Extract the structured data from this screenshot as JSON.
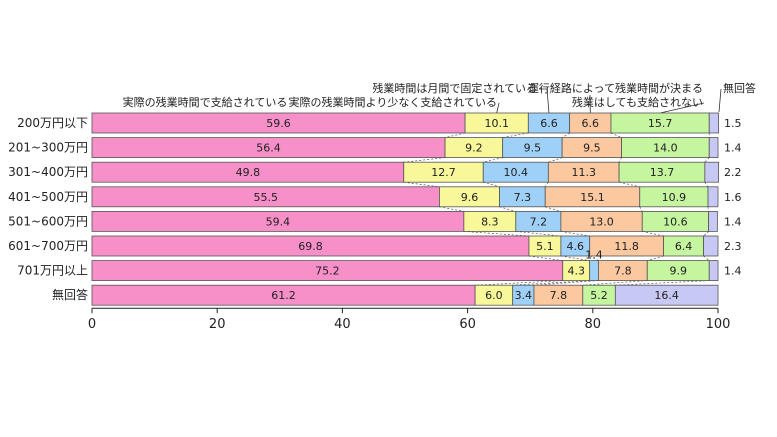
{
  "chart_data": {
    "type": "bar",
    "orientation": "horizontal",
    "stacked": true,
    "categories": [
      "200万円以下",
      "201~300万円",
      "301~400万円",
      "401~500万円",
      "501~600万円",
      "601~700万円",
      "701万円以上",
      "無回答"
    ],
    "series": [
      {
        "name": "実際の残業時間で支給されている",
        "color": "#f78fc8",
        "values": [
          59.6,
          56.4,
          49.8,
          55.5,
          59.4,
          69.8,
          75.2,
          61.2
        ]
      },
      {
        "name": "実際の残業時間より少なく支給されている",
        "color": "#f8f89a",
        "values": [
          10.1,
          9.2,
          12.7,
          9.6,
          8.3,
          5.1,
          4.3,
          6.0
        ]
      },
      {
        "name": "残業時間は月間で固定されている",
        "color": "#9fd0f7",
        "values": [
          6.6,
          9.5,
          10.4,
          7.3,
          7.2,
          4.6,
          1.4,
          3.4
        ]
      },
      {
        "name": "運行経路によって残業時間が決まる",
        "color": "#fbc8a0",
        "values": [
          6.6,
          9.5,
          11.3,
          15.1,
          13.0,
          11.8,
          7.8,
          7.8
        ]
      },
      {
        "name": "残業はしても支給されない",
        "color": "#c6f5a0",
        "values": [
          15.7,
          14.0,
          13.7,
          10.9,
          10.6,
          6.4,
          9.9,
          5.2
        ]
      },
      {
        "name": "無回答",
        "color": "#c8c8f5",
        "values": [
          1.5,
          1.4,
          2.2,
          1.6,
          1.4,
          2.3,
          1.4,
          16.4
        ]
      }
    ],
    "value_labels": [
      [
        "59.6",
        "10.1",
        "6.6",
        "6.6",
        "15.7",
        "1.5"
      ],
      [
        "56.4",
        "9.2",
        "9.5",
        "9.5",
        "14.0",
        "1.4"
      ],
      [
        "49.8",
        "12.7",
        "10.4",
        "11.3",
        "13.7",
        "2.2"
      ],
      [
        "55.5",
        "9.6",
        "7.3",
        "15.1",
        "10.9",
        "1.6"
      ],
      [
        "59.4",
        "8.3",
        "7.2",
        "13.0",
        "10.6",
        "1.4"
      ],
      [
        "69.8",
        "5.1",
        "4.6",
        "11.8",
        "6.4",
        "2.3"
      ],
      [
        "75.2",
        "4.3",
        "1.4",
        "7.8",
        "9.9",
        "1.4"
      ],
      [
        "61.2",
        "6.0",
        "3.4",
        "7.8",
        "5.2",
        "16.4"
      ]
    ],
    "xlim": [
      0,
      100
    ],
    "xticks": [
      "0",
      "20",
      "40",
      "60",
      "80",
      "100"
    ],
    "legend_position": "top, callouts above bars"
  }
}
